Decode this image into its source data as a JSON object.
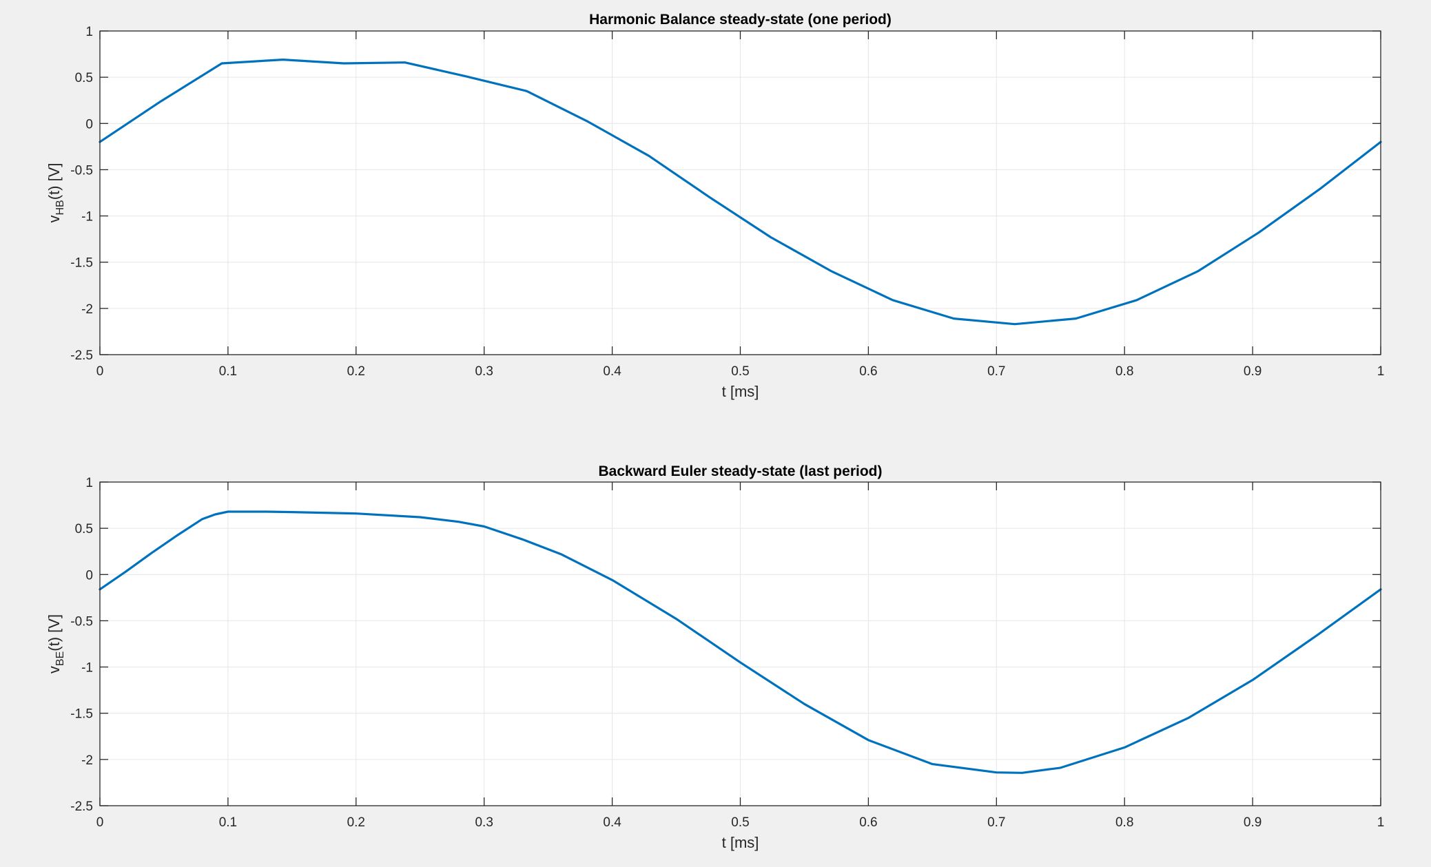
{
  "figure": {
    "background": "#f0f0f0",
    "line_color": "#0072bd"
  },
  "chart_data": [
    {
      "type": "line",
      "title": "Harmonic Balance steady-state (one period)",
      "xlabel": "t [ms]",
      "ylabel": {
        "main": "v",
        "sub": "HB",
        "rest": "(t) [V]"
      },
      "xlim": [
        0,
        1
      ],
      "ylim": [
        -2.5,
        1
      ],
      "xticks": [
        0,
        0.1,
        0.2,
        0.3,
        0.4,
        0.5,
        0.6,
        0.7,
        0.8,
        0.9,
        1
      ],
      "xtick_labels": [
        "0",
        "0.1",
        "0.2",
        "0.3",
        "0.4",
        "0.5",
        "0.6",
        "0.7",
        "0.8",
        "0.9",
        "1"
      ],
      "yticks": [
        -2.5,
        -2,
        -1.5,
        -1,
        -0.5,
        0,
        0.5,
        1
      ],
      "ytick_labels": [
        "-2.5",
        "-2",
        "-1.5",
        "-1",
        "-0.5",
        "0",
        "0.5",
        "1"
      ],
      "grid": true,
      "series": [
        {
          "x": [
            0,
            0.0476,
            0.0952,
            0.1429,
            0.1905,
            0.2381,
            0.2857,
            0.3333,
            0.381,
            0.4286,
            0.4762,
            0.5238,
            0.5714,
            0.619,
            0.6667,
            0.7143,
            0.7619,
            0.8095,
            0.8571,
            0.9048,
            0.9524,
            1
          ],
          "y": [
            -0.2,
            0.24,
            0.65,
            0.69,
            0.65,
            0.66,
            0.51,
            0.35,
            0.02,
            -0.35,
            -0.8,
            -1.23,
            -1.6,
            -1.91,
            -2.11,
            -2.17,
            -2.11,
            -1.91,
            -1.6,
            -1.18,
            -0.71,
            -0.2
          ]
        }
      ]
    },
    {
      "type": "line",
      "title": "Backward Euler steady-state (last period)",
      "xlabel": "t [ms]",
      "ylabel": {
        "main": "v",
        "sub": "BE",
        "rest": "(t) [V]"
      },
      "xlim": [
        0,
        1
      ],
      "ylim": [
        -2.5,
        1
      ],
      "xticks": [
        0,
        0.1,
        0.2,
        0.3,
        0.4,
        0.5,
        0.6,
        0.7,
        0.8,
        0.9,
        1
      ],
      "xtick_labels": [
        "0",
        "0.1",
        "0.2",
        "0.3",
        "0.4",
        "0.5",
        "0.6",
        "0.7",
        "0.8",
        "0.9",
        "1"
      ],
      "yticks": [
        -2.5,
        -2,
        -1.5,
        -1,
        -0.5,
        0,
        0.5,
        1
      ],
      "ytick_labels": [
        "-2.5",
        "-2",
        "-1.5",
        "-1",
        "-0.5",
        "0",
        "0.5",
        "1"
      ],
      "grid": true,
      "series": [
        {
          "x": [
            0,
            0.02,
            0.04,
            0.06,
            0.08,
            0.09,
            0.1,
            0.11,
            0.13,
            0.15,
            0.2,
            0.25,
            0.28,
            0.3,
            0.33,
            0.36,
            0.4,
            0.45,
            0.5,
            0.55,
            0.6,
            0.65,
            0.7,
            0.72,
            0.75,
            0.8,
            0.85,
            0.9,
            0.95,
            1
          ],
          "y": [
            -0.16,
            0.03,
            0.23,
            0.42,
            0.6,
            0.65,
            0.68,
            0.68,
            0.68,
            0.675,
            0.66,
            0.62,
            0.57,
            0.52,
            0.38,
            0.22,
            -0.06,
            -0.48,
            -0.95,
            -1.4,
            -1.79,
            -2.05,
            -2.14,
            -2.145,
            -2.09,
            -1.87,
            -1.55,
            -1.14,
            -0.66,
            -0.16
          ]
        }
      ]
    }
  ]
}
